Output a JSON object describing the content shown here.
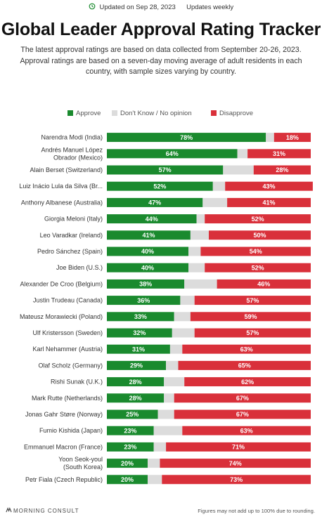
{
  "header": {
    "updated": "Updated on Sep 28, 2023",
    "frequency": "Updates weekly",
    "title": "Global Leader Approval Rating Tracker",
    "subtitle": "The latest approval ratings are based on data collected from September 20-26, 2023. Approval ratings are based on a seven-day moving average of adult residents in each country, with sample sizes varying by country."
  },
  "colors": {
    "approve": "#1a8a2e",
    "unknown": "#dcdcdc",
    "disapprove": "#d9303a"
  },
  "footer": {
    "brand": "MORNING CONSULT",
    "note": "Figures may not add up to 100% due to rounding."
  },
  "chart_data": {
    "type": "bar",
    "stacked": true,
    "orientation": "horizontal",
    "series": [
      {
        "name": "Approve",
        "values": [
          78,
          64,
          57,
          52,
          47,
          44,
          41,
          40,
          40,
          38,
          36,
          33,
          32,
          31,
          29,
          28,
          28,
          25,
          23,
          23,
          20,
          20
        ]
      },
      {
        "name": "Don't Know / No opinion",
        "values": [
          4,
          5,
          15,
          6,
          12,
          4,
          9,
          6,
          8,
          16,
          7,
          8,
          11,
          6,
          6,
          10,
          5,
          8,
          14,
          6,
          6,
          7
        ]
      },
      {
        "name": "Disapprove",
        "values": [
          18,
          31,
          28,
          43,
          41,
          52,
          50,
          54,
          52,
          46,
          57,
          59,
          57,
          63,
          65,
          62,
          67,
          67,
          63,
          71,
          74,
          73
        ]
      }
    ],
    "labels": {
      "approve": [
        "78%",
        "64%",
        "57%",
        "52%",
        "47%",
        "44%",
        "41%",
        "40%",
        "40%",
        "38%",
        "36%",
        "33%",
        "32%",
        "31%",
        "29%",
        "28%",
        "28%",
        "25%",
        "23%",
        "23%",
        "20%",
        "20%"
      ],
      "disapprove": [
        "18%",
        "31%",
        "28%",
        "43%",
        "41%",
        "52%",
        "50%",
        "54%",
        "52%",
        "46%",
        "57%",
        "59%",
        "57%",
        "63%",
        "65%",
        "62%",
        "67%",
        "67%",
        "63%",
        "71%",
        "74%",
        "73%"
      ]
    },
    "categories": [
      [
        "Narendra Modi (India)"
      ],
      [
        "Andrés Manuel López",
        "Obrador (Mexico)"
      ],
      [
        "Alain Berset (Switzerland)"
      ],
      [
        "Luiz Inácio Lula da Silva (Br..."
      ],
      [
        "Anthony Albanese (Australia)"
      ],
      [
        "Giorgia Meloni (Italy)"
      ],
      [
        "Leo Varadkar (Ireland)"
      ],
      [
        "Pedro Sánchez (Spain)"
      ],
      [
        "Joe Biden (U.S.)"
      ],
      [
        "Alexander De Croo (Belgium)"
      ],
      [
        "Justin Trudeau (Canada)"
      ],
      [
        "Mateusz Morawiecki (Poland)"
      ],
      [
        "Ulf Kristersson (Sweden)"
      ],
      [
        "Karl Nehammer (Austria)"
      ],
      [
        "Olaf Scholz (Germany)"
      ],
      [
        "Rishi Sunak (U.K.)"
      ],
      [
        "Mark Rutte (Netherlands)"
      ],
      [
        "Jonas Gahr Støre (Norway)"
      ],
      [
        "Fumio Kishida (Japan)"
      ],
      [
        "Emmanuel Macron (France)"
      ],
      [
        "Yoon Seok-youl",
        "(South Korea)"
      ],
      [
        "Petr Fiala (Czech Republic)"
      ]
    ],
    "xlim": [
      0,
      100
    ],
    "grid": false,
    "legend": "top"
  }
}
